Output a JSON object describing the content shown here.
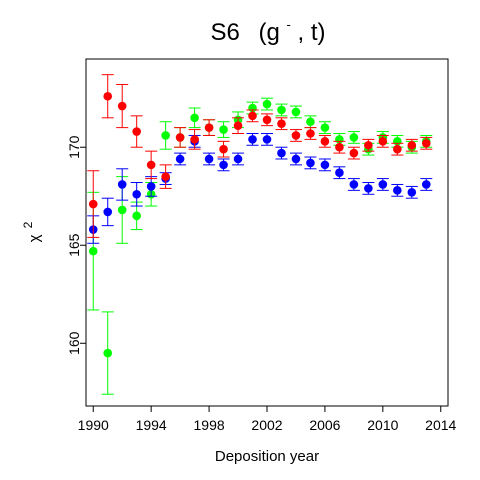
{
  "chart_data": {
    "type": "scatter",
    "title_main": "S6",
    "title_args": "(g",
    "title_sup": "-",
    "title_rest": ", t)",
    "xlabel": "Deposition year",
    "ylabel_base": "χ",
    "ylabel_sup": "2",
    "xlim": [
      1989.5,
      2014.5
    ],
    "ylim": [
      156.8,
      174.5
    ],
    "xticks": [
      1990,
      1994,
      1998,
      2002,
      2006,
      2010,
      2014
    ],
    "yticks": [
      160,
      165,
      170
    ],
    "grid": false,
    "legend": "none",
    "series": [
      {
        "color": "#00ff00",
        "points": [
          [
            1990,
            164.7,
            161.7,
            167.7
          ],
          [
            1991,
            159.5,
            157.4,
            161.6
          ],
          [
            1992,
            166.8,
            165.1,
            168.5
          ],
          [
            1993,
            166.5,
            165.8,
            167.2
          ],
          [
            1994,
            167.6,
            167.0,
            168.2
          ],
          [
            1995,
            170.6,
            169.9,
            171.3
          ],
          [
            1996,
            170.5,
            170.0,
            171.0
          ],
          [
            1997,
            171.5,
            171.0,
            172.0
          ],
          [
            1998,
            171.0,
            170.6,
            171.4
          ],
          [
            1999,
            170.9,
            170.5,
            171.3
          ],
          [
            2000,
            171.4,
            171.0,
            171.8
          ],
          [
            2001,
            172.0,
            171.7,
            172.3
          ],
          [
            2002,
            172.2,
            171.9,
            172.5
          ],
          [
            2003,
            171.9,
            171.6,
            172.2
          ],
          [
            2004,
            171.8,
            171.5,
            172.1
          ],
          [
            2005,
            171.3,
            171.0,
            171.6
          ],
          [
            2006,
            171.0,
            170.7,
            171.3
          ],
          [
            2007,
            170.4,
            170.1,
            170.7
          ],
          [
            2008,
            170.5,
            170.2,
            170.8
          ],
          [
            2009,
            169.9,
            169.6,
            170.2
          ],
          [
            2010,
            170.5,
            170.2,
            170.8
          ],
          [
            2011,
            170.3,
            170.0,
            170.6
          ],
          [
            2012,
            170.0,
            169.7,
            170.3
          ],
          [
            2013,
            170.3,
            170.0,
            170.6
          ]
        ]
      },
      {
        "color": "#0000ff",
        "points": [
          [
            1990,
            165.8,
            165.1,
            166.5
          ],
          [
            1991,
            166.7,
            166.0,
            167.4
          ],
          [
            1992,
            168.1,
            167.3,
            168.9
          ],
          [
            1993,
            167.6,
            167.0,
            168.2
          ],
          [
            1994,
            168.0,
            167.5,
            168.5
          ],
          [
            1995,
            168.4,
            168.1,
            168.7
          ],
          [
            1996,
            169.4,
            169.1,
            169.7
          ],
          [
            1997,
            170.3,
            170.0,
            170.6
          ],
          [
            1998,
            169.4,
            169.1,
            169.7
          ],
          [
            1999,
            169.1,
            168.8,
            169.4
          ],
          [
            2000,
            169.4,
            169.1,
            169.7
          ],
          [
            2001,
            170.4,
            170.1,
            170.7
          ],
          [
            2002,
            170.4,
            170.1,
            170.7
          ],
          [
            2003,
            169.7,
            169.4,
            170.0
          ],
          [
            2004,
            169.4,
            169.1,
            169.7
          ],
          [
            2005,
            169.2,
            168.9,
            169.5
          ],
          [
            2006,
            169.1,
            168.8,
            169.4
          ],
          [
            2007,
            168.7,
            168.4,
            169.0
          ],
          [
            2008,
            168.1,
            167.8,
            168.4
          ],
          [
            2009,
            167.9,
            167.6,
            168.2
          ],
          [
            2010,
            168.1,
            167.8,
            168.4
          ],
          [
            2011,
            167.8,
            167.5,
            168.1
          ],
          [
            2012,
            167.7,
            167.4,
            168.0
          ],
          [
            2013,
            168.1,
            167.8,
            168.4
          ]
        ]
      },
      {
        "color": "#ff0000",
        "points": [
          [
            1990,
            167.1,
            165.4,
            168.8
          ],
          [
            1991,
            172.6,
            171.5,
            173.7
          ],
          [
            1992,
            172.1,
            171.0,
            173.2
          ],
          [
            1993,
            170.8,
            170.0,
            171.6
          ],
          [
            1994,
            169.1,
            168.4,
            169.8
          ],
          [
            1995,
            168.5,
            167.9,
            169.1
          ],
          [
            1996,
            170.5,
            170.0,
            171.0
          ],
          [
            1997,
            170.4,
            169.9,
            170.9
          ],
          [
            1998,
            171.0,
            170.6,
            171.4
          ],
          [
            1999,
            169.9,
            169.5,
            170.3
          ],
          [
            2000,
            171.1,
            170.7,
            171.5
          ],
          [
            2001,
            171.6,
            171.3,
            171.9
          ],
          [
            2002,
            171.4,
            171.1,
            171.7
          ],
          [
            2003,
            171.2,
            170.9,
            171.5
          ],
          [
            2004,
            170.6,
            170.3,
            170.9
          ],
          [
            2005,
            170.7,
            170.4,
            171.0
          ],
          [
            2006,
            170.3,
            170.0,
            170.6
          ],
          [
            2007,
            170.0,
            169.7,
            170.3
          ],
          [
            2008,
            169.7,
            169.4,
            170.0
          ],
          [
            2009,
            170.1,
            169.8,
            170.4
          ],
          [
            2010,
            170.3,
            170.0,
            170.6
          ],
          [
            2011,
            169.9,
            169.6,
            170.2
          ],
          [
            2012,
            170.1,
            169.8,
            170.4
          ],
          [
            2013,
            170.2,
            169.9,
            170.5
          ]
        ]
      }
    ]
  }
}
